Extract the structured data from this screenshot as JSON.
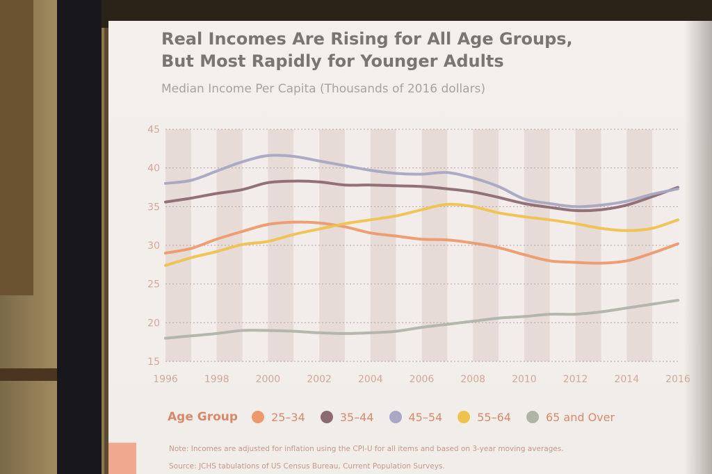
{
  "slide": {
    "title_line1": "Real Incomes Are Rising for All Age Groups,",
    "title_line2": "But Most Rapidly for Younger Adults",
    "subtitle": "Median Income Per Capita (Thousands of 2016 dollars)",
    "note": "Note: Incomes are adjusted for inflation using the CPI-U for all items and based on 3-year moving averages.",
    "source": "Source: JCHS tabulations of US Census Bureau, Current Population Surveys."
  },
  "legend": {
    "title": "Age Group",
    "items": [
      {
        "label": "25–34",
        "color": "#ec9a6c"
      },
      {
        "label": "35–44",
        "color": "#8c6a72"
      },
      {
        "label": "45–54",
        "color": "#a8a8c4"
      },
      {
        "label": "55–64",
        "color": "#efc24e"
      },
      {
        "label": "65 and Over",
        "color": "#b0b4a8"
      }
    ]
  },
  "chart_data": {
    "type": "line",
    "title": "Median Income Per Capita (Thousands of 2016 dollars)",
    "x": [
      1996,
      1997,
      1998,
      1999,
      2000,
      2001,
      2002,
      2003,
      2004,
      2005,
      2006,
      2007,
      2008,
      2009,
      2010,
      2011,
      2012,
      2013,
      2014,
      2015,
      2016
    ],
    "x_tick_labels": [
      "1996",
      "1998",
      "2000",
      "2002",
      "2004",
      "2006",
      "2008",
      "2010",
      "2012",
      "2014",
      "2016"
    ],
    "ylim": [
      15,
      45
    ],
    "y_ticks": [
      15,
      20,
      25,
      30,
      35,
      40,
      45
    ],
    "grid": true,
    "legend_title": "Age Group",
    "legend_position": "bottom",
    "series": [
      {
        "name": "25–34",
        "color": "#ec9a6c",
        "values": [
          29.0,
          29.6,
          30.8,
          31.8,
          32.7,
          33.0,
          32.9,
          32.4,
          31.6,
          31.2,
          30.8,
          30.7,
          30.3,
          29.7,
          28.8,
          28.0,
          27.8,
          27.7,
          28.0,
          29.0,
          30.2
        ]
      },
      {
        "name": "35–44",
        "color": "#8c6a72",
        "values": [
          35.6,
          36.1,
          36.7,
          37.2,
          38.1,
          38.3,
          38.2,
          37.8,
          37.8,
          37.7,
          37.6,
          37.3,
          36.9,
          36.2,
          35.4,
          34.9,
          34.5,
          34.6,
          35.2,
          36.3,
          37.5
        ]
      },
      {
        "name": "45–54",
        "color": "#a8a8c4",
        "values": [
          38.0,
          38.4,
          39.6,
          40.8,
          41.6,
          41.5,
          40.9,
          40.3,
          39.7,
          39.3,
          39.2,
          39.4,
          38.7,
          37.6,
          36.0,
          35.4,
          35.0,
          35.2,
          35.7,
          36.6,
          37.3
        ]
      },
      {
        "name": "55–64",
        "color": "#efc24e",
        "values": [
          27.4,
          28.4,
          29.2,
          30.1,
          30.5,
          31.4,
          32.1,
          32.8,
          33.3,
          33.8,
          34.6,
          35.3,
          35.0,
          34.2,
          33.7,
          33.3,
          32.8,
          32.2,
          31.9,
          32.2,
          33.3
        ]
      },
      {
        "name": "65 and Over",
        "color": "#b0b4a8",
        "values": [
          18.0,
          18.3,
          18.6,
          19.0,
          19.0,
          18.9,
          18.7,
          18.6,
          18.7,
          18.9,
          19.4,
          19.8,
          20.2,
          20.6,
          20.8,
          21.1,
          21.1,
          21.4,
          21.9,
          22.4,
          22.9
        ]
      }
    ]
  }
}
